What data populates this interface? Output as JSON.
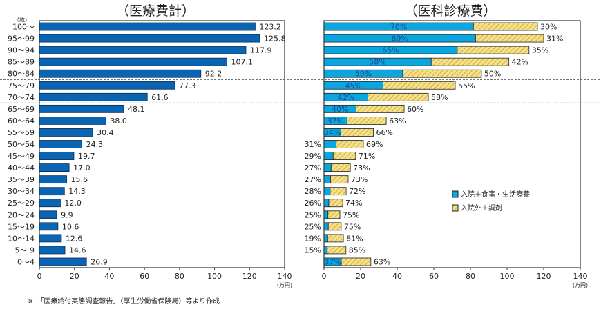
{
  "footnote": "※　「医療給付実態調査報告」（厚生労働省保険局）等より作成",
  "colors": {
    "left_bar": "#0a64b4",
    "inpatient": "#0aa6e0",
    "outpatient": "#f5e08c",
    "hatch": "#c8a020"
  },
  "chart_data": [
    {
      "type": "bar",
      "title": "（医療費計）",
      "ylabel": "（歳）",
      "xlabel": "(万円)",
      "xlim": [
        0,
        140
      ],
      "xticks": [
        "0",
        "20",
        "40",
        "60",
        "80",
        "100",
        "120",
        "140"
      ],
      "grid": false,
      "categories": [
        "100～",
        "95～99",
        "90～94",
        "85～89",
        "80～84",
        "75～79",
        "70～74",
        "65～69",
        "60～64",
        "55～59",
        "50～54",
        "45～49",
        "40～44",
        "35～39",
        "30～34",
        "25～29",
        "20～24",
        "15～19",
        "10～14",
        "5～ 9",
        "0～4"
      ],
      "values": [
        123.2,
        125.8,
        117.9,
        107.1,
        92.2,
        77.3,
        61.6,
        48.1,
        38.0,
        30.4,
        24.3,
        19.7,
        17.0,
        15.6,
        14.3,
        12.0,
        9.9,
        10.6,
        12.6,
        14.6,
        26.9
      ],
      "value_labels": [
        "123.2",
        "125.8",
        "117.9",
        "107.1",
        "92.2",
        "77.3",
        "61.6",
        "48.1",
        "38.0",
        "30.4",
        "24.3",
        "19.7",
        "17.0",
        "15.6",
        "14.3",
        "12.0",
        "9.9",
        "10.6",
        "12.6",
        "14.6",
        "26.9"
      ]
    },
    {
      "type": "bar",
      "stacked": true,
      "title": "（医科診療費）",
      "xlabel": "(万円)",
      "xlim": [
        0,
        140
      ],
      "xticks": [
        "0",
        "20",
        "40",
        "60",
        "80",
        "100",
        "120",
        "140"
      ],
      "grid": false,
      "legend_position": "center-right",
      "totals": [
        116.6,
        120,
        112,
        101,
        86,
        71.7,
        57,
        43.8,
        34,
        27,
        21.5,
        17.3,
        14.4,
        13.2,
        12.1,
        10.2,
        8.7,
        9.4,
        10.6,
        12,
        25.6
      ],
      "series": [
        {
          "name": "入院＋食事・生活療養",
          "percent_labels": [
            "70%",
            "69%",
            "65%",
            "58%",
            "50%",
            "45%",
            "42%",
            "40%",
            "37%",
            "34%",
            "31%",
            "29%",
            "27%",
            "27%",
            "28%",
            "26%",
            "25%",
            "25%",
            "19%",
            "15%",
            "37%"
          ],
          "percent": [
            70,
            69,
            65,
            58,
            50,
            45,
            42,
            40,
            37,
            34,
            31,
            29,
            27,
            27,
            28,
            26,
            25,
            25,
            19,
            15,
            37
          ]
        },
        {
          "name": "入院外＋調剤",
          "percent_labels": [
            "30%",
            "31%",
            "35%",
            "42%",
            "50%",
            "55%",
            "58%",
            "60%",
            "63%",
            "66%",
            "69%",
            "71%",
            "73%",
            "73%",
            "72%",
            "74%",
            "75%",
            "75%",
            "81%",
            "85%",
            "63%"
          ],
          "percent": [
            30,
            31,
            35,
            42,
            50,
            55,
            58,
            60,
            63,
            66,
            69,
            71,
            73,
            73,
            72,
            74,
            75,
            75,
            81,
            85,
            63
          ]
        }
      ]
    }
  ]
}
